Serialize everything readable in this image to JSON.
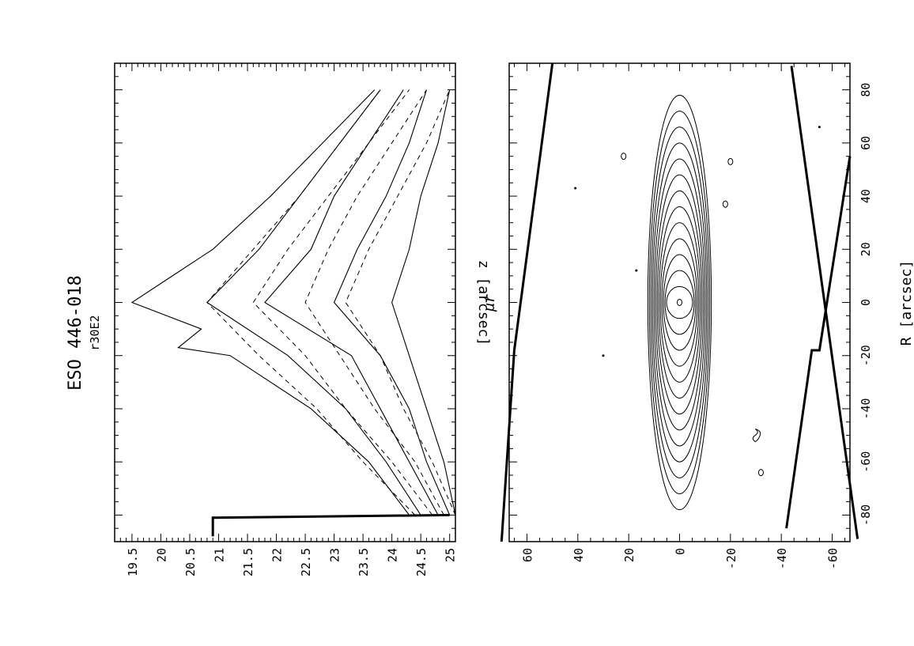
{
  "figure": {
    "title": "ESO 446-018",
    "subtitle": "r30E2"
  },
  "chart_data": [
    {
      "type": "line",
      "panel": "upper / left (rotated)",
      "ylabel": "μr",
      "xlabel": "",
      "xlim": [
        -90,
        90
      ],
      "ylim": [
        25.1,
        19.2
      ],
      "y_ticks": [
        19.5,
        20,
        20.5,
        21,
        21.5,
        22,
        22.5,
        23,
        23.5,
        24,
        24.5,
        25
      ],
      "x_ticks": [
        -80,
        -60,
        -40,
        -20,
        0,
        20,
        40,
        60,
        80
      ],
      "series": [
        {
          "style": "solid",
          "x": [
            -80,
            -60,
            -40,
            -20,
            -17,
            -10,
            0,
            10,
            20,
            40,
            60,
            80
          ],
          "y": [
            24.3,
            23.6,
            22.6,
            21.2,
            20.3,
            20.7,
            19.5,
            20.2,
            20.9,
            21.9,
            22.8,
            23.7
          ]
        },
        {
          "style": "solid",
          "x": [
            -80,
            -60,
            -40,
            -20,
            0,
            20,
            40,
            60,
            80
          ],
          "y": [
            24.5,
            23.9,
            23.2,
            22.2,
            20.8,
            21.7,
            22.4,
            23.1,
            23.8
          ]
        },
        {
          "style": "solid",
          "x": [
            -80,
            -60,
            -40,
            -20,
            0,
            20,
            40,
            60,
            80
          ],
          "y": [
            24.8,
            24.3,
            23.8,
            23.3,
            21.8,
            22.6,
            23.0,
            23.6,
            24.2
          ]
        },
        {
          "style": "solid",
          "x": [
            -80,
            -60,
            -40,
            -20,
            0,
            20,
            40,
            60,
            80
          ],
          "y": [
            25.0,
            24.6,
            24.3,
            23.8,
            23.0,
            23.4,
            23.9,
            24.3,
            24.6
          ]
        },
        {
          "style": "solid",
          "x": [
            -80,
            -60,
            -40,
            -20,
            0,
            20,
            40,
            60,
            80
          ],
          "y": [
            25.1,
            24.9,
            24.6,
            24.3,
            24.0,
            24.3,
            24.5,
            24.8,
            25.0
          ]
        },
        {
          "style": "dashed",
          "x": [
            -80,
            -60,
            -40,
            -20,
            0,
            20,
            40,
            60,
            80
          ],
          "y": [
            24.4,
            23.5,
            22.7,
            21.7,
            20.8,
            21.6,
            22.4,
            23.1,
            23.8
          ]
        },
        {
          "style": "dashed",
          "x": [
            -80,
            -60,
            -40,
            -20,
            0,
            20,
            40,
            60,
            80
          ],
          "y": [
            24.7,
            24.0,
            23.2,
            22.5,
            21.6,
            22.2,
            22.9,
            23.6,
            24.3
          ]
        },
        {
          "style": "dashed",
          "x": [
            -80,
            -60,
            -40,
            -20,
            0,
            20,
            40,
            60,
            80
          ],
          "y": [
            24.9,
            24.4,
            23.7,
            23.1,
            22.5,
            22.9,
            23.4,
            24.0,
            24.6
          ]
        },
        {
          "style": "dashed",
          "x": [
            -80,
            -60,
            -40,
            -20,
            0,
            20,
            40,
            60,
            80
          ],
          "y": [
            25.1,
            24.7,
            24.2,
            23.8,
            23.2,
            23.6,
            24.1,
            24.6,
            25.0
          ]
        }
      ],
      "limit_line": {
        "x": [
          -80,
          -81,
          -88
        ],
        "y": [
          25.0,
          20.9,
          20.9
        ]
      }
    },
    {
      "type": "contour",
      "panel": "lower / right (rotated)",
      "xlabel": "R [arcsec]",
      "ylabel": "z [arcsec]",
      "xlim": [
        -90,
        90
      ],
      "ylim": [
        -67,
        67
      ],
      "x_ticks": [
        -80,
        -60,
        -40,
        -20,
        0,
        20,
        40,
        60,
        80
      ],
      "y_ticks": [
        -60,
        -40,
        -20,
        0,
        20,
        40,
        60
      ],
      "contour_half_extents_R": [
        78,
        72,
        66,
        60,
        54,
        48,
        42,
        36,
        30,
        24,
        18,
        12,
        6
      ],
      "mask_lines": [
        {
          "R": [
            -89,
            89
          ],
          "z": [
            -70,
            -44
          ]
        },
        {
          "R": [
            -18,
            90
          ],
          "z": [
            65,
            50
          ]
        },
        {
          "R": [
            -18,
            -90
          ],
          "z": [
            65,
            70
          ]
        },
        {
          "R": [
            -85,
            -18,
            -18,
            55
          ],
          "z": [
            -42,
            -52,
            -55,
            -67
          ]
        }
      ],
      "sources": [
        {
          "R": 55,
          "z": 22,
          "kind": "ellipse"
        },
        {
          "R": 37,
          "z": -18,
          "kind": "ellipse"
        },
        {
          "R": 53,
          "z": -20,
          "kind": "ellipse"
        },
        {
          "R": -64,
          "z": -32,
          "kind": "ellipse"
        },
        {
          "R": -50,
          "z": -31,
          "kind": "blob"
        },
        {
          "R": 12,
          "z": 17,
          "kind": "dot"
        },
        {
          "R": -20,
          "z": 30,
          "kind": "dot"
        },
        {
          "R": 66,
          "z": -55,
          "kind": "dot"
        },
        {
          "R": 43,
          "z": 41,
          "kind": "dot"
        }
      ]
    }
  ]
}
